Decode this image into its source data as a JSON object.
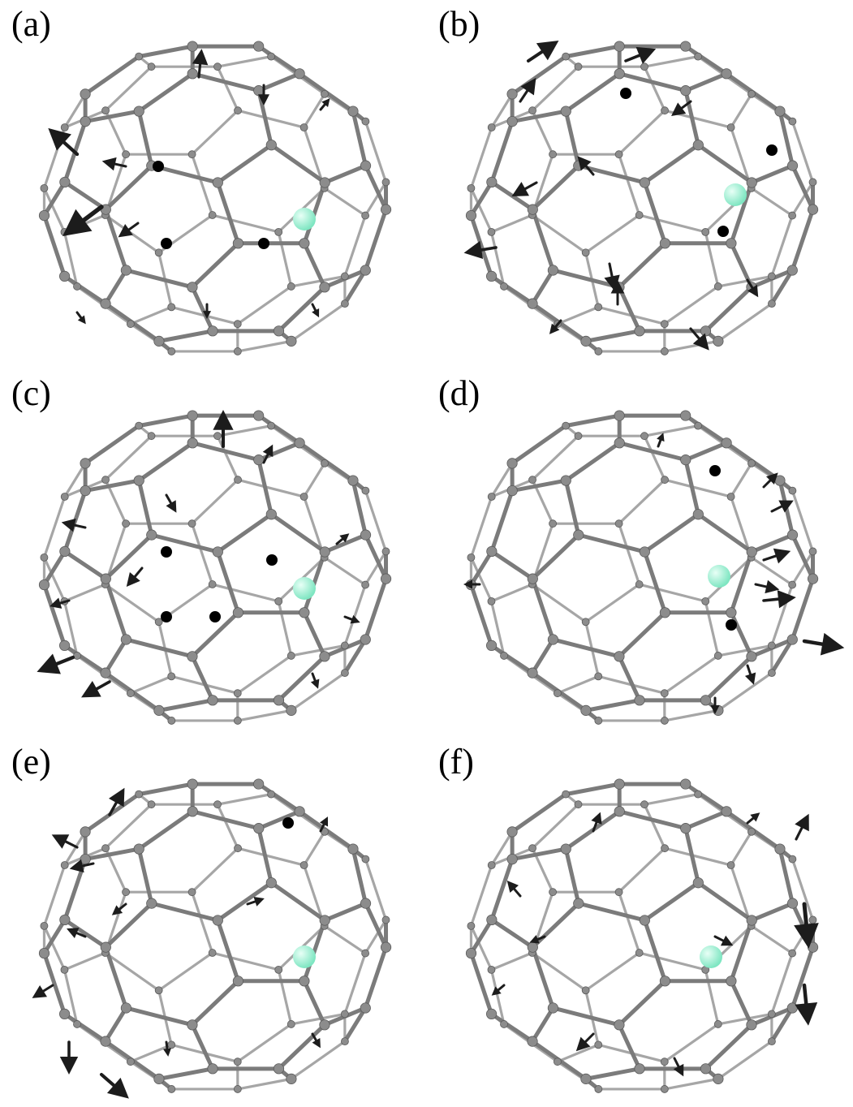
{
  "figure": {
    "panels": [
      {
        "label": "(a)",
        "arrows": [
          [
            -170,
            -55,
            -1.0,
            -0.9,
            48
          ],
          [
            -140,
            10,
            -1.2,
            0.9,
            60
          ],
          [
            -110,
            -40,
            -0.9,
            -0.2,
            30
          ],
          [
            -95,
            30,
            -0.7,
            0.5,
            30
          ],
          [
            -20,
            -150,
            0.1,
            -1.0,
            35
          ],
          [
            60,
            -140,
            0.0,
            1.0,
            25
          ],
          [
            -170,
            140,
            0.6,
            0.8,
            18
          ],
          [
            130,
            -110,
            0.5,
            -0.6,
            18
          ],
          [
            120,
            130,
            0.4,
            0.8,
            18
          ],
          [
            -10,
            130,
            0.0,
            0.8,
            18
          ]
        ],
        "dots": [
          [
            -70,
            -40
          ],
          [
            -60,
            55
          ],
          [
            60,
            55
          ]
        ]
      },
      {
        "label": "(b)",
        "arrows": [
          [
            -140,
            -170,
            0.9,
            -0.6,
            45
          ],
          [
            -150,
            -120,
            0.6,
            -0.9,
            35
          ],
          [
            -20,
            -170,
            1.0,
            -0.4,
            40
          ],
          [
            60,
            -120,
            -0.8,
            0.6,
            30
          ],
          [
            -180,
            60,
            -1.2,
            0.2,
            40
          ],
          [
            -130,
            -20,
            -0.9,
            0.5,
            35
          ],
          [
            -60,
            -30,
            -0.6,
            -0.7,
            30
          ],
          [
            -40,
            80,
            0.2,
            1.0,
            35
          ],
          [
            60,
            160,
            0.6,
            0.7,
            35
          ],
          [
            -30,
            130,
            0.0,
            -1.0,
            30
          ],
          [
            130,
            100,
            0.5,
            0.8,
            25
          ],
          [
            -100,
            150,
            -0.5,
            0.6,
            22
          ]
        ],
        "dots": [
          [
            -20,
            -130
          ],
          [
            160,
            -60
          ],
          [
            100,
            40
          ]
        ]
      },
      {
        "label": "(c)",
        "arrows": [
          [
            -175,
            110,
            -1.0,
            0.4,
            48
          ],
          [
            -130,
            140,
            -0.9,
            0.5,
            40
          ],
          [
            10,
            -150,
            0.0,
            -1.0,
            45
          ],
          [
            -160,
            -50,
            -0.9,
            -0.2,
            30
          ],
          [
            -90,
            0,
            -0.5,
            0.6,
            30
          ],
          [
            -180,
            40,
            -1.0,
            0.3,
            25
          ],
          [
            60,
            -130,
            0.4,
            -0.8,
            25
          ],
          [
            150,
            -30,
            0.6,
            -0.5,
            20
          ],
          [
            -60,
            -90,
            0.4,
            0.7,
            25
          ],
          [
            160,
            60,
            0.8,
            0.3,
            20
          ],
          [
            120,
            130,
            0.3,
            0.8,
            20
          ]
        ],
        "dots": [
          [
            -60,
            -20
          ],
          [
            0,
            60
          ],
          [
            70,
            -10
          ],
          [
            -60,
            60
          ]
        ]
      },
      {
        "label": "(d)",
        "arrows": [
          [
            200,
            90,
            1.2,
            0.2,
            50
          ],
          [
            150,
            40,
            1.0,
            -0.1,
            40
          ],
          [
            150,
            -10,
            0.9,
            -0.3,
            35
          ],
          [
            140,
            20,
            0.9,
            0.2,
            30
          ],
          [
            160,
            -70,
            0.8,
            -0.4,
            30
          ],
          [
            150,
            -100,
            0.6,
            -0.6,
            25
          ],
          [
            130,
            120,
            0.3,
            0.9,
            25
          ],
          [
            -200,
            20,
            -1.0,
            0.0,
            20
          ],
          [
            90,
            160,
            0.0,
            0.8,
            20
          ],
          [
            20,
            -150,
            0.3,
            -0.8,
            18
          ]
        ],
        "dots": [
          [
            110,
            70
          ],
          [
            90,
            -120
          ]
        ]
      },
      {
        "label": "(e)",
        "arrows": [
          [
            -130,
            -150,
            0.5,
            -0.9,
            38
          ],
          [
            -170,
            -110,
            -0.8,
            -0.4,
            35
          ],
          [
            -150,
            -90,
            -0.9,
            0.2,
            30
          ],
          [
            -180,
            130,
            0.0,
            1.0,
            40
          ],
          [
            -140,
            170,
            0.8,
            0.7,
            45
          ],
          [
            -200,
            60,
            -0.8,
            0.5,
            30
          ],
          [
            -160,
            0,
            -0.7,
            -0.3,
            25
          ],
          [
            -110,
            -40,
            -0.5,
            0.4,
            22
          ],
          [
            40,
            -40,
            0.6,
            -0.2,
            22
          ],
          [
            130,
            -130,
            0.3,
            -0.6,
            20
          ],
          [
            120,
            120,
            0.4,
            0.7,
            20
          ],
          [
            -60,
            130,
            0.1,
            0.8,
            18
          ]
        ],
        "dots": [
          [
            90,
            -140
          ]
        ]
      },
      {
        "label": "(f)",
        "arrows": [
          [
            200,
            -40,
            0.1,
            1.0,
            55
          ],
          [
            200,
            60,
            0.1,
            1.0,
            50
          ],
          [
            190,
            -120,
            0.4,
            -0.8,
            35
          ],
          [
            -150,
            -50,
            -0.6,
            -0.7,
            25
          ],
          [
            -60,
            -130,
            0.3,
            -0.8,
            25
          ],
          [
            90,
            0,
            0.6,
            0.3,
            25
          ],
          [
            -60,
            120,
            -0.6,
            0.6,
            30
          ],
          [
            40,
            150,
            0.4,
            0.8,
            25
          ],
          [
            130,
            -140,
            0.6,
            -0.5,
            20
          ],
          [
            -170,
            60,
            -0.6,
            0.5,
            20
          ],
          [
            -120,
            0,
            -0.5,
            0.2,
            20
          ]
        ],
        "dots": []
      }
    ],
    "colors": {
      "label": "#000000",
      "bond": "#7b7b7b",
      "bond_back": "#a6a6a6",
      "atom": "#8c8c8c",
      "atom_dark": "#000000",
      "arrow": "#1c1c1c",
      "dopant": "#7fe6c2"
    }
  }
}
